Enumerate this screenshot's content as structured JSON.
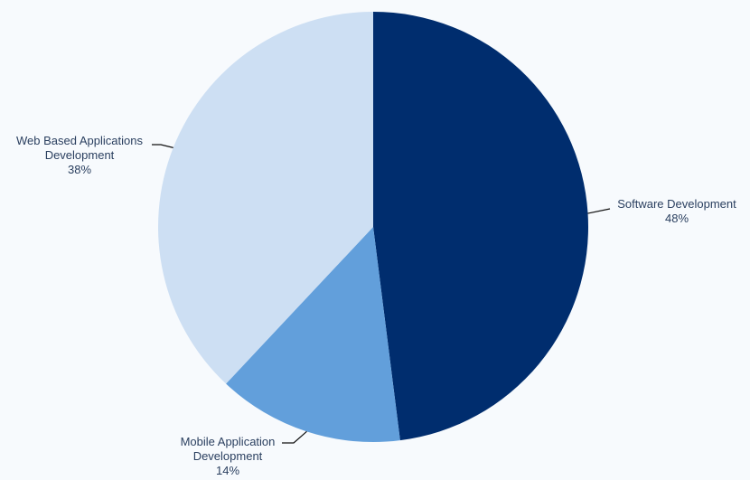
{
  "chart_data": {
    "type": "pie",
    "categories": [
      "Software Development",
      "Mobile Application Development",
      "Web Based Applications Development"
    ],
    "values": [
      48,
      14,
      38
    ],
    "value_labels": [
      "48%",
      "14%",
      "38%"
    ],
    "colors": [
      "#002d6e",
      "#629fdb",
      "#cddff3"
    ]
  }
}
